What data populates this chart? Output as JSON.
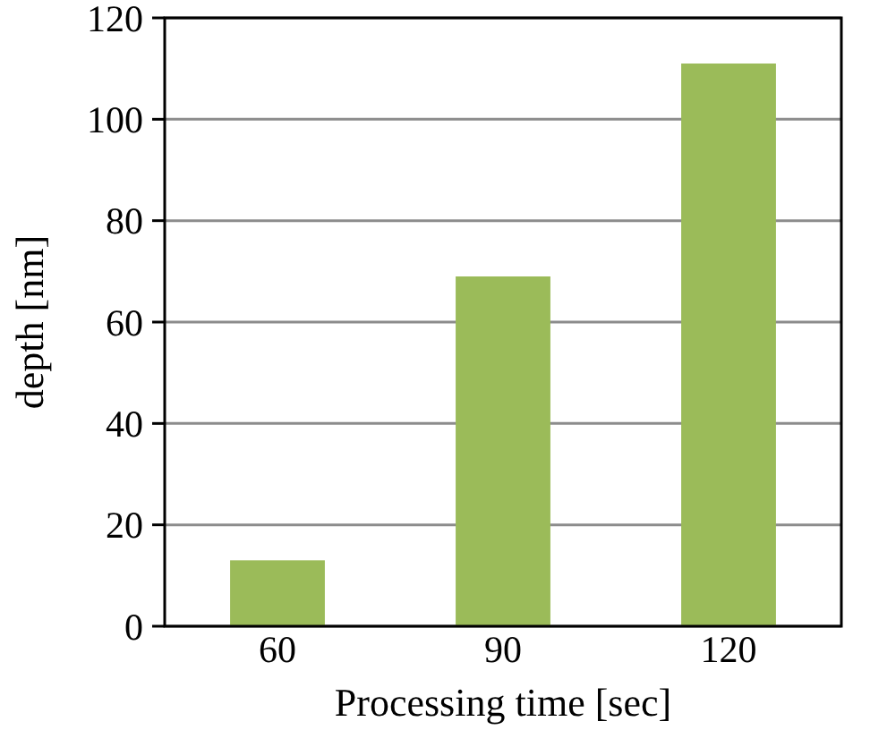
{
  "chart_data": {
    "type": "bar",
    "xlabel": "Processing time [sec]",
    "ylabel": "depth [nm]",
    "categories": [
      "60",
      "90",
      "120"
    ],
    "values": [
      13,
      69,
      111
    ],
    "color": "#9bbb59",
    "ylim": [
      0,
      120
    ],
    "yticks": [
      0,
      20,
      40,
      60,
      80,
      100,
      120
    ],
    "grid": "y"
  }
}
